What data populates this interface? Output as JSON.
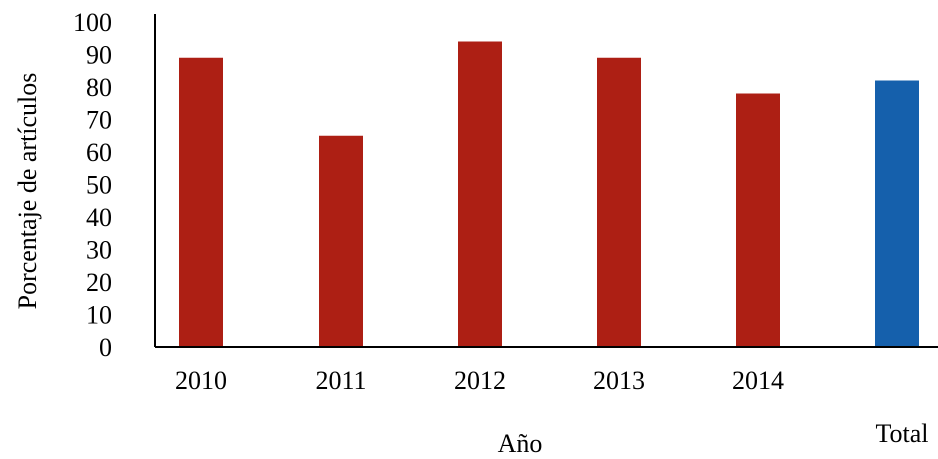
{
  "chart_data": {
    "type": "bar",
    "title": "",
    "xlabel": "Año",
    "ylabel": "Porcentaje de artículos",
    "ylim": [
      0,
      100
    ],
    "yticks": [
      0,
      10,
      20,
      30,
      40,
      50,
      60,
      70,
      80,
      90,
      100
    ],
    "categories": [
      "2010",
      "2011",
      "2012",
      "2013",
      "2014",
      "Total"
    ],
    "values": [
      89,
      65,
      94,
      89,
      78,
      82
    ],
    "colors": [
      "#ad1f14",
      "#ad1f14",
      "#ad1f14",
      "#ad1f14",
      "#ad1f14",
      "#1560ac"
    ],
    "grid": false,
    "legend": "none"
  }
}
